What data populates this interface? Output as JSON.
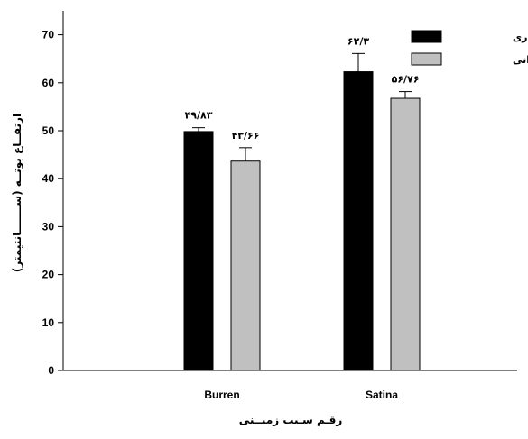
{
  "chart_data": {
    "type": "bar",
    "categories": [
      "Burren",
      "Satina"
    ],
    "series": [
      {
        "name": "قطره ای- نواری",
        "color": "#000000",
        "values": [
          49.83,
          62.3
        ],
        "errors": [
          0.8,
          3.8
        ],
        "labels": [
          "۴۹/۸۳",
          "۶۲/۳"
        ]
      },
      {
        "name": "بـــارانی",
        "color": "#c0c0c0",
        "values": [
          43.66,
          56.76
        ],
        "errors": [
          2.8,
          1.4
        ],
        "labels": [
          "۴۳/۶۶",
          "۵۶/۷۶"
        ]
      }
    ],
    "xlabel": "رقـم سـیب زمیــنی",
    "ylabel": "ارتفــاع بوتــه (ســـــــانتیمتر)",
    "ylim": [
      0,
      75
    ],
    "yticks": [
      "0",
      "10",
      "20",
      "30",
      "40",
      "50",
      "60",
      "70"
    ],
    "grid": false,
    "legend": "top-right"
  }
}
